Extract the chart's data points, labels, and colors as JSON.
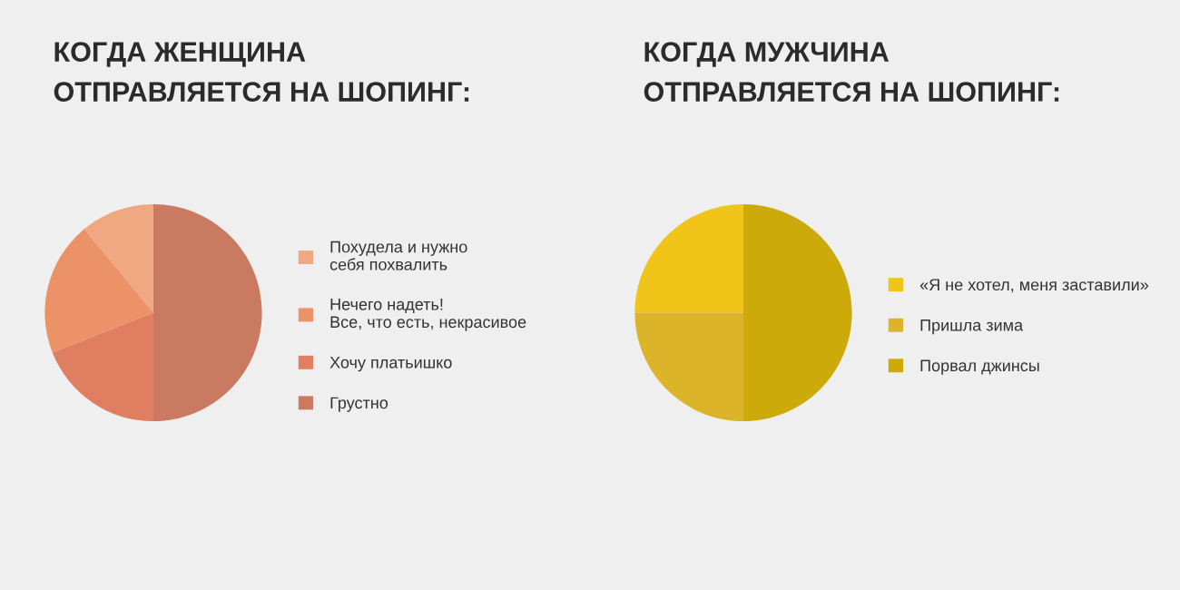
{
  "chart_data": [
    {
      "type": "pie",
      "title": "КОГДА ЖЕНЩИНА\nОТПРАВЛЯЕТСЯ НА ШОПИНГ:",
      "categories": [
        "Похудела и нужно\nсебя похвалить",
        "Нечего надеть!\nВсе, что есть, некрасивое",
        "Хочу платьишко",
        "Грустно"
      ],
      "values": [
        11,
        20,
        19,
        50
      ],
      "colors": [
        "#f0a883",
        "#ec9268",
        "#e07e62",
        "#c97a60"
      ],
      "legend": "right"
    },
    {
      "type": "pie",
      "title": "КОГДА МУЖЧИНА\nОТПРАВЛЯЕТСЯ НА ШОПИНГ:",
      "categories": [
        "«Я не хотел, меня заставили»",
        "Пришла зима",
        "Порвал джинсы"
      ],
      "values": [
        25,
        25,
        50
      ],
      "colors": [
        "#f0c419",
        "#dcb42a",
        "#ccaa0a"
      ],
      "legend": "right"
    }
  ]
}
